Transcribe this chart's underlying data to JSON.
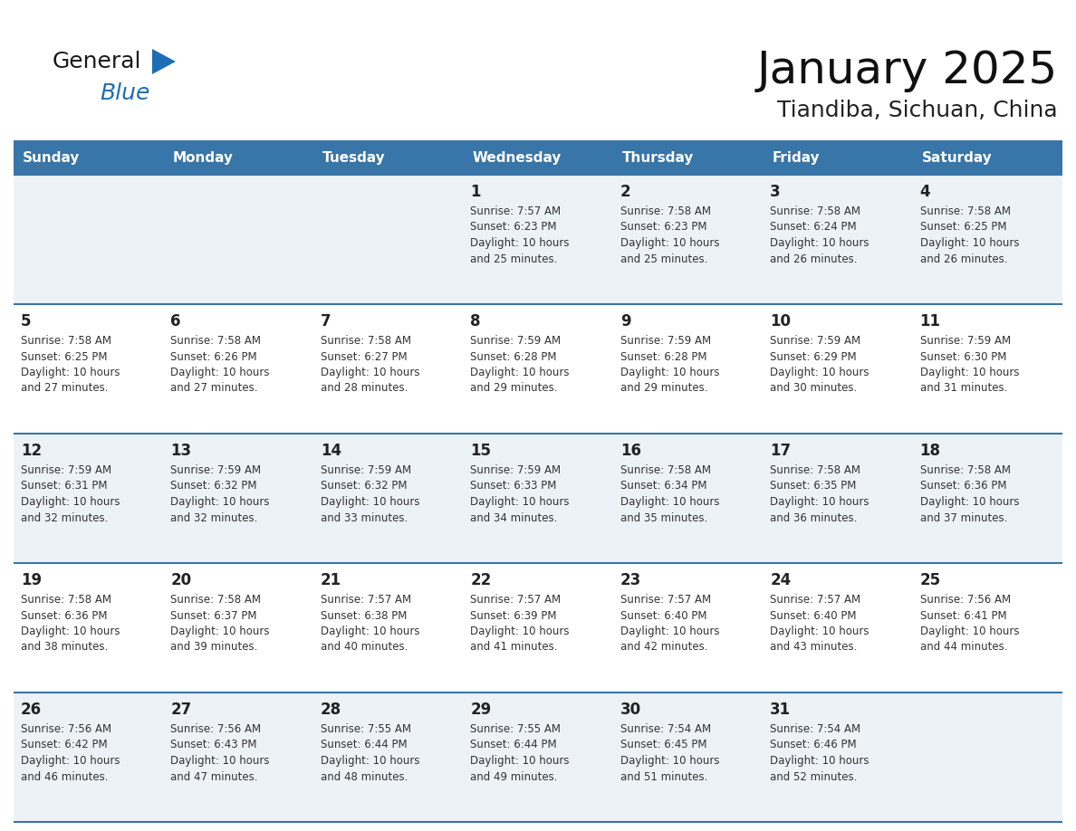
{
  "title": "January 2025",
  "subtitle": "Tiandiba, Sichuan, China",
  "days_of_week": [
    "Sunday",
    "Monday",
    "Tuesday",
    "Wednesday",
    "Thursday",
    "Friday",
    "Saturday"
  ],
  "header_bg": "#3875a8",
  "header_text": "#ffffff",
  "row_bg_odd": "#edf2f7",
  "row_bg_even": "#ffffff",
  "divider_color": "#3875a8",
  "day_number_color": "#222222",
  "cell_text_color": "#333333",
  "title_color": "#111111",
  "subtitle_color": "#222222",
  "logo_general_color": "#1a1a1a",
  "logo_blue_color": "#1f6db5",
  "calendar_data": [
    [
      null,
      null,
      null,
      {
        "day": 1,
        "sunrise": "7:57 AM",
        "sunset": "6:23 PM",
        "daylight": "10 hours and 25 minutes."
      },
      {
        "day": 2,
        "sunrise": "7:58 AM",
        "sunset": "6:23 PM",
        "daylight": "10 hours and 25 minutes."
      },
      {
        "day": 3,
        "sunrise": "7:58 AM",
        "sunset": "6:24 PM",
        "daylight": "10 hours and 26 minutes."
      },
      {
        "day": 4,
        "sunrise": "7:58 AM",
        "sunset": "6:25 PM",
        "daylight": "10 hours and 26 minutes."
      }
    ],
    [
      {
        "day": 5,
        "sunrise": "7:58 AM",
        "sunset": "6:25 PM",
        "daylight": "10 hours and 27 minutes."
      },
      {
        "day": 6,
        "sunrise": "7:58 AM",
        "sunset": "6:26 PM",
        "daylight": "10 hours and 27 minutes."
      },
      {
        "day": 7,
        "sunrise": "7:58 AM",
        "sunset": "6:27 PM",
        "daylight": "10 hours and 28 minutes."
      },
      {
        "day": 8,
        "sunrise": "7:59 AM",
        "sunset": "6:28 PM",
        "daylight": "10 hours and 29 minutes."
      },
      {
        "day": 9,
        "sunrise": "7:59 AM",
        "sunset": "6:28 PM",
        "daylight": "10 hours and 29 minutes."
      },
      {
        "day": 10,
        "sunrise": "7:59 AM",
        "sunset": "6:29 PM",
        "daylight": "10 hours and 30 minutes."
      },
      {
        "day": 11,
        "sunrise": "7:59 AM",
        "sunset": "6:30 PM",
        "daylight": "10 hours and 31 minutes."
      }
    ],
    [
      {
        "day": 12,
        "sunrise": "7:59 AM",
        "sunset": "6:31 PM",
        "daylight": "10 hours and 32 minutes."
      },
      {
        "day": 13,
        "sunrise": "7:59 AM",
        "sunset": "6:32 PM",
        "daylight": "10 hours and 32 minutes."
      },
      {
        "day": 14,
        "sunrise": "7:59 AM",
        "sunset": "6:32 PM",
        "daylight": "10 hours and 33 minutes."
      },
      {
        "day": 15,
        "sunrise": "7:59 AM",
        "sunset": "6:33 PM",
        "daylight": "10 hours and 34 minutes."
      },
      {
        "day": 16,
        "sunrise": "7:58 AM",
        "sunset": "6:34 PM",
        "daylight": "10 hours and 35 minutes."
      },
      {
        "day": 17,
        "sunrise": "7:58 AM",
        "sunset": "6:35 PM",
        "daylight": "10 hours and 36 minutes."
      },
      {
        "day": 18,
        "sunrise": "7:58 AM",
        "sunset": "6:36 PM",
        "daylight": "10 hours and 37 minutes."
      }
    ],
    [
      {
        "day": 19,
        "sunrise": "7:58 AM",
        "sunset": "6:36 PM",
        "daylight": "10 hours and 38 minutes."
      },
      {
        "day": 20,
        "sunrise": "7:58 AM",
        "sunset": "6:37 PM",
        "daylight": "10 hours and 39 minutes."
      },
      {
        "day": 21,
        "sunrise": "7:57 AM",
        "sunset": "6:38 PM",
        "daylight": "10 hours and 40 minutes."
      },
      {
        "day": 22,
        "sunrise": "7:57 AM",
        "sunset": "6:39 PM",
        "daylight": "10 hours and 41 minutes."
      },
      {
        "day": 23,
        "sunrise": "7:57 AM",
        "sunset": "6:40 PM",
        "daylight": "10 hours and 42 minutes."
      },
      {
        "day": 24,
        "sunrise": "7:57 AM",
        "sunset": "6:40 PM",
        "daylight": "10 hours and 43 minutes."
      },
      {
        "day": 25,
        "sunrise": "7:56 AM",
        "sunset": "6:41 PM",
        "daylight": "10 hours and 44 minutes."
      }
    ],
    [
      {
        "day": 26,
        "sunrise": "7:56 AM",
        "sunset": "6:42 PM",
        "daylight": "10 hours and 46 minutes."
      },
      {
        "day": 27,
        "sunrise": "7:56 AM",
        "sunset": "6:43 PM",
        "daylight": "10 hours and 47 minutes."
      },
      {
        "day": 28,
        "sunrise": "7:55 AM",
        "sunset": "6:44 PM",
        "daylight": "10 hours and 48 minutes."
      },
      {
        "day": 29,
        "sunrise": "7:55 AM",
        "sunset": "6:44 PM",
        "daylight": "10 hours and 49 minutes."
      },
      {
        "day": 30,
        "sunrise": "7:54 AM",
        "sunset": "6:45 PM",
        "daylight": "10 hours and 51 minutes."
      },
      {
        "day": 31,
        "sunrise": "7:54 AM",
        "sunset": "6:46 PM",
        "daylight": "10 hours and 52 minutes."
      },
      null
    ]
  ]
}
